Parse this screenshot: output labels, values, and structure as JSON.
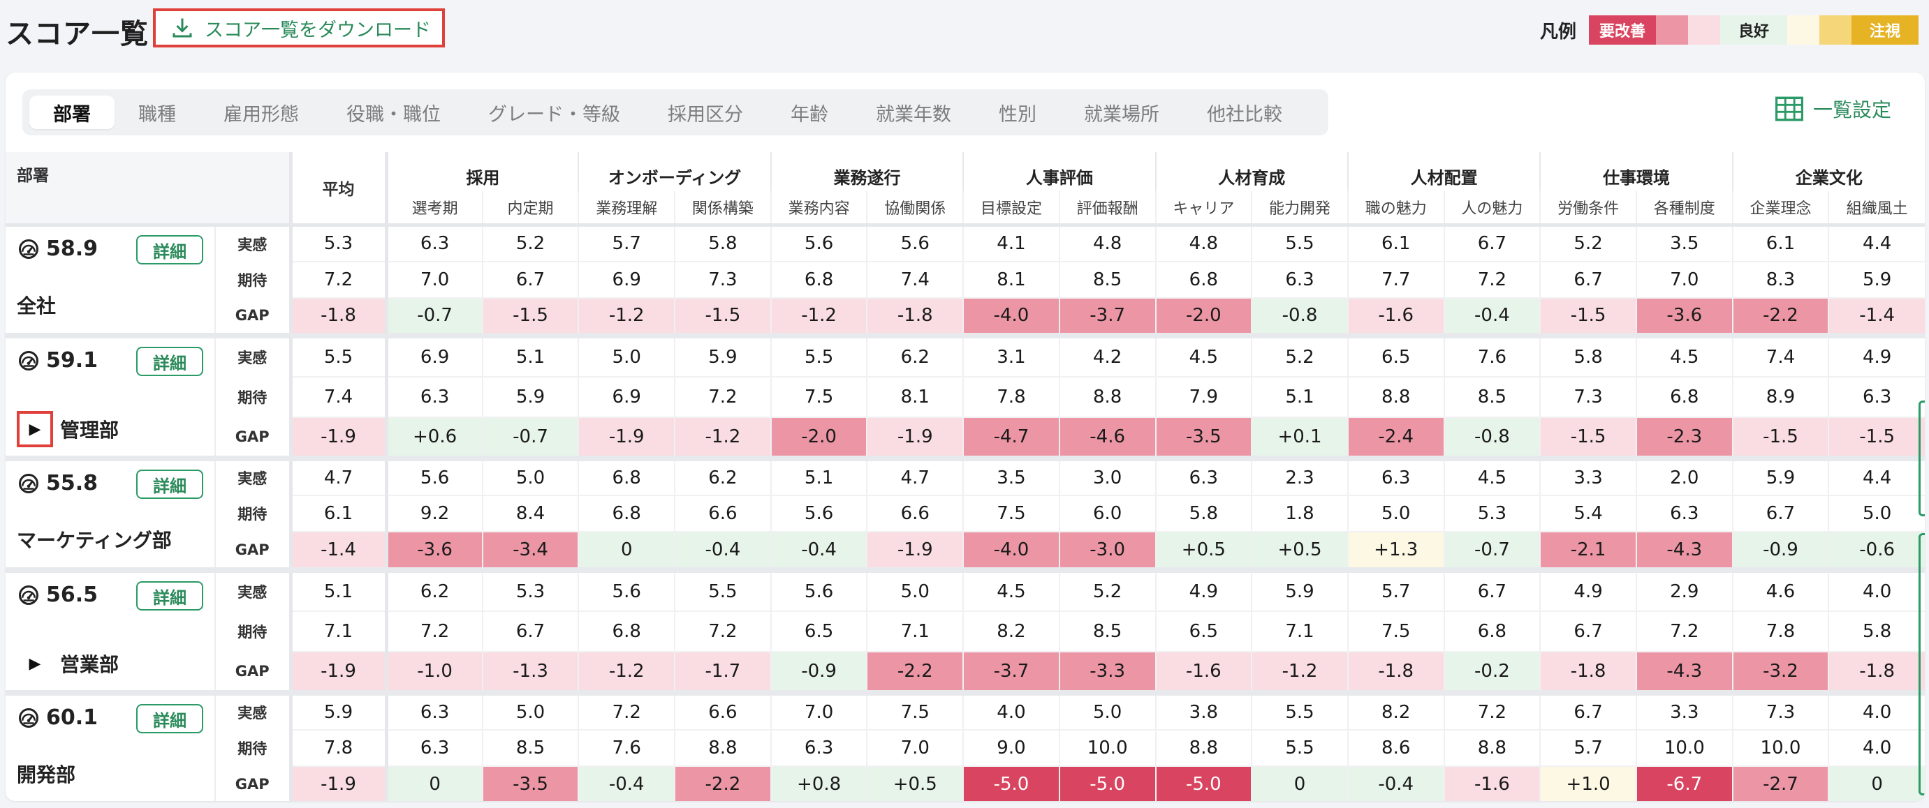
{
  "page": {
    "title": "スコア一覧",
    "download_label": "スコア一覧をダウンロード"
  },
  "legend": {
    "title": "凡例",
    "items": [
      {
        "label": "要改善",
        "color": "#d94560",
        "text_color": "#ffffff"
      },
      {
        "label": "",
        "color": "#ec96a5"
      },
      {
        "label": "",
        "color": "#f9dde2"
      },
      {
        "label": "良好",
        "color": "#e7f4ea",
        "text_color": "#222222"
      },
      {
        "label": "",
        "color": "#fdf8e4"
      },
      {
        "label": "",
        "color": "#f5d77a"
      },
      {
        "label": "注視",
        "color": "#e6b325",
        "text_color": "#ffffff"
      }
    ]
  },
  "tabs": [
    "部署",
    "職種",
    "雇用形態",
    "役職・職位",
    "グレード・等級",
    "採用区分",
    "年齢",
    "就業年数",
    "性別",
    "就業場所",
    "他社比較"
  ],
  "active_tab": 0,
  "list_setting_label": "一覧設定",
  "table": {
    "dept_header": "部署",
    "avg_header": "平均",
    "detail_label": "詳細",
    "kinds": [
      "実感",
      "期待",
      "GAP"
    ],
    "groups": [
      {
        "name": "採用",
        "subs": [
          "選考期",
          "内定期"
        ]
      },
      {
        "name": "オンボーディング",
        "subs": [
          "業務理解",
          "関係構築"
        ]
      },
      {
        "name": "業務遂行",
        "subs": [
          "業務内容",
          "協働関係"
        ]
      },
      {
        "name": "人事評価",
        "subs": [
          "目標設定",
          "評価報酬"
        ]
      },
      {
        "name": "人材育成",
        "subs": [
          "キャリア",
          "能力開発"
        ]
      },
      {
        "name": "人材配置",
        "subs": [
          "職の魅力",
          "人の魅力"
        ]
      },
      {
        "name": "仕事環境",
        "subs": [
          "労働条件",
          "各種制度"
        ]
      },
      {
        "name": "企業文化",
        "subs": [
          "企業理念",
          "組織風土"
        ]
      }
    ],
    "rows": [
      {
        "score": "58.9",
        "name": "全社",
        "expandable": false,
        "actual": [
          "5.3",
          "6.3",
          "5.2",
          "5.7",
          "5.8",
          "5.6",
          "5.6",
          "4.1",
          "4.8",
          "4.8",
          "5.5",
          "6.1",
          "6.7",
          "5.2",
          "3.5",
          "6.1",
          "4.4"
        ],
        "expected": [
          "7.2",
          "7.0",
          "6.7",
          "6.9",
          "7.3",
          "6.8",
          "7.4",
          "8.1",
          "8.5",
          "6.8",
          "6.3",
          "7.7",
          "7.2",
          "6.7",
          "7.0",
          "8.3",
          "5.9"
        ],
        "gap": [
          "-1.8",
          "-0.7",
          "-1.5",
          "-1.2",
          "-1.5",
          "-1.2",
          "-1.8",
          "-4.0",
          "-3.7",
          "-2.0",
          "-0.8",
          "-1.6",
          "-0.4",
          "-1.5",
          "-3.6",
          "-2.2",
          "-1.4"
        ],
        "gap_level": [
          "s3",
          "g",
          "s3",
          "s3",
          "s3",
          "s3",
          "s3",
          "s4",
          "s4",
          "s4",
          "g",
          "s3",
          "g",
          "s3",
          "s4",
          "s4",
          "s3"
        ]
      },
      {
        "score": "59.1",
        "name": "管理部",
        "expandable": true,
        "highlight": true,
        "actual": [
          "5.5",
          "6.9",
          "5.1",
          "5.0",
          "5.9",
          "5.5",
          "6.2",
          "3.1",
          "4.2",
          "4.5",
          "5.2",
          "6.5",
          "7.6",
          "5.8",
          "4.5",
          "7.4",
          "4.9"
        ],
        "expected": [
          "7.4",
          "6.3",
          "5.9",
          "6.9",
          "7.2",
          "7.5",
          "8.1",
          "7.8",
          "8.8",
          "7.9",
          "5.1",
          "8.8",
          "8.5",
          "7.3",
          "6.8",
          "8.9",
          "6.3"
        ],
        "gap": [
          "-1.9",
          "+0.6",
          "-0.7",
          "-1.9",
          "-1.2",
          "-2.0",
          "-1.9",
          "-4.7",
          "-4.6",
          "-3.5",
          "+0.1",
          "-2.4",
          "-0.8",
          "-1.5",
          "-2.3",
          "-1.5",
          "-1.5"
        ],
        "gap_level": [
          "s3",
          "g",
          "g",
          "s3",
          "s3",
          "s4",
          "s3",
          "s4",
          "s4",
          "s4",
          "g",
          "s4",
          "g",
          "s3",
          "s4",
          "s3",
          "s3"
        ]
      },
      {
        "score": "55.8",
        "name": "マーケティング部",
        "expandable": false,
        "actual": [
          "4.7",
          "5.6",
          "5.0",
          "6.8",
          "6.2",
          "5.1",
          "4.7",
          "3.5",
          "3.0",
          "6.3",
          "2.3",
          "6.3",
          "4.5",
          "3.3",
          "2.0",
          "5.9",
          "4.4"
        ],
        "expected": [
          "6.1",
          "9.2",
          "8.4",
          "6.8",
          "6.6",
          "5.6",
          "6.6",
          "7.5",
          "6.0",
          "5.8",
          "1.8",
          "5.0",
          "5.3",
          "5.4",
          "6.3",
          "6.7",
          "5.0"
        ],
        "gap": [
          "-1.4",
          "-3.6",
          "-3.4",
          "0",
          "-0.4",
          "-0.4",
          "-1.9",
          "-4.0",
          "-3.0",
          "+0.5",
          "+0.5",
          "+1.3",
          "-0.7",
          "-2.1",
          "-4.3",
          "-0.9",
          "-0.6"
        ],
        "gap_level": [
          "s3",
          "s4",
          "s4",
          "g",
          "g",
          "g",
          "s3",
          "s4",
          "s4",
          "g",
          "g",
          "y",
          "g",
          "s4",
          "s4",
          "g",
          "g"
        ]
      },
      {
        "score": "56.5",
        "name": "営業部",
        "expandable": true,
        "actual": [
          "5.1",
          "6.2",
          "5.3",
          "5.6",
          "5.5",
          "5.6",
          "5.0",
          "4.5",
          "5.2",
          "4.9",
          "5.9",
          "5.7",
          "6.7",
          "4.9",
          "2.9",
          "4.6",
          "4.0"
        ],
        "expected": [
          "7.1",
          "7.2",
          "6.7",
          "6.8",
          "7.2",
          "6.5",
          "7.1",
          "8.2",
          "8.5",
          "6.5",
          "7.1",
          "7.5",
          "6.8",
          "6.7",
          "7.2",
          "7.8",
          "5.8"
        ],
        "gap": [
          "-1.9",
          "-1.0",
          "-1.3",
          "-1.2",
          "-1.7",
          "-0.9",
          "-2.2",
          "-3.7",
          "-3.3",
          "-1.6",
          "-1.2",
          "-1.8",
          "-0.2",
          "-1.8",
          "-4.3",
          "-3.2",
          "-1.8"
        ],
        "gap_level": [
          "s3",
          "s3",
          "s3",
          "s3",
          "s3",
          "g",
          "s4",
          "s4",
          "s4",
          "s3",
          "s3",
          "s3",
          "g",
          "s3",
          "s4",
          "s4",
          "s3"
        ]
      },
      {
        "score": "60.1",
        "name": "開発部",
        "expandable": false,
        "actual": [
          "5.9",
          "6.3",
          "5.0",
          "7.2",
          "6.6",
          "7.0",
          "7.5",
          "4.0",
          "5.0",
          "3.8",
          "5.5",
          "8.2",
          "7.2",
          "6.7",
          "3.3",
          "7.3",
          "4.0"
        ],
        "expected": [
          "7.8",
          "6.3",
          "8.5",
          "7.6",
          "8.8",
          "6.3",
          "7.0",
          "9.0",
          "10.0",
          "8.8",
          "5.5",
          "8.6",
          "8.8",
          "5.7",
          "10.0",
          "10.0",
          "4.0"
        ],
        "gap": [
          "-1.9",
          "0",
          "-3.5",
          "-0.4",
          "-2.2",
          "+0.8",
          "+0.5",
          "-5.0",
          "-5.0",
          "-5.0",
          "0",
          "-0.4",
          "-1.6",
          "+1.0",
          "-6.7",
          "-2.7",
          "0"
        ],
        "gap_level": [
          "s3",
          "g",
          "s4",
          "g",
          "s4",
          "g",
          "g",
          "s5",
          "s5",
          "s5",
          "g",
          "g",
          "s3",
          "y",
          "s5",
          "s4",
          "g"
        ]
      }
    ]
  }
}
